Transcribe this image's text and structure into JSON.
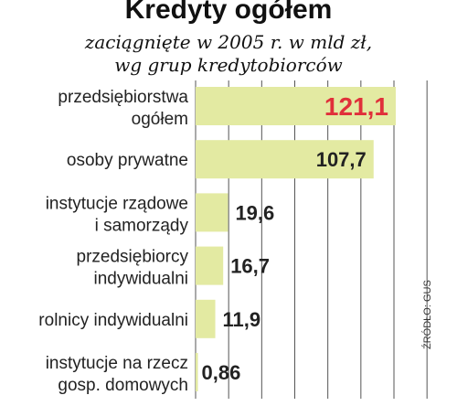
{
  "chart_data": {
    "type": "bar",
    "orientation": "horizontal",
    "title": "Kredyty ogółem",
    "subtitle_lines": [
      "zaciągnięte w 2005 r. w mld zł,",
      "wg grup kredytobiorców"
    ],
    "categories": [
      [
        "przedsiębiorstwa",
        "ogółem"
      ],
      [
        "osoby prywatne"
      ],
      [
        "instytucje rządowe",
        "i samorządy"
      ],
      [
        "przedsiębiorcy",
        "indywidualni"
      ],
      [
        "rolnicy indywidualni"
      ],
      [
        "instytucje na rzecz",
        "gosp. domowych"
      ]
    ],
    "values": [
      121.1,
      107.7,
      19.6,
      16.7,
      11.9,
      0.86
    ],
    "value_labels": [
      "121,1",
      "107,7",
      "19,6",
      "16,7",
      "11,9",
      "0,86"
    ],
    "xlim": [
      0,
      140
    ],
    "grid": true,
    "source": "ŹRÓDŁO: GUS",
    "colors": {
      "bar": "#e3eaa2",
      "highlight_label": "#e0303a",
      "label": "#222222",
      "grid": "#555555"
    }
  }
}
